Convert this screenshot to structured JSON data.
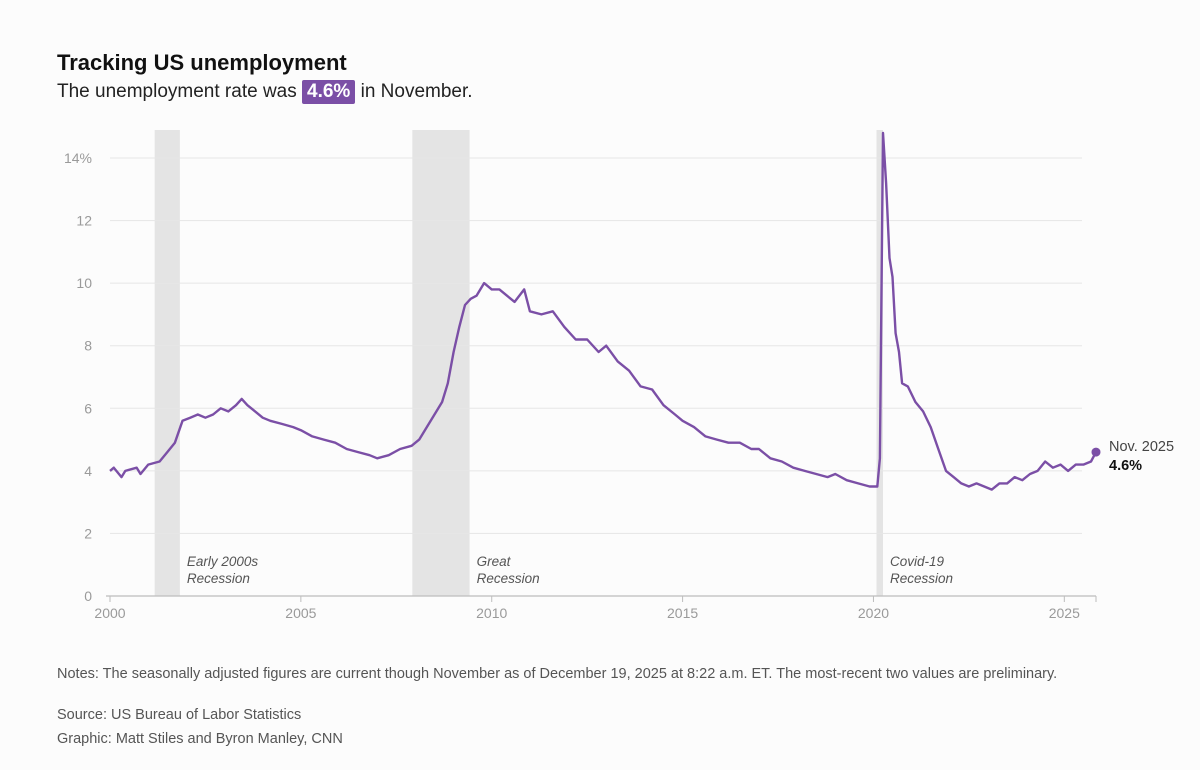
{
  "header": {
    "title": "Tracking US unemployment",
    "subtitle_pre": "The unemployment rate was",
    "subtitle_value": "4.6%",
    "subtitle_post": "in November."
  },
  "footer": {
    "notes": "Notes: The seasonally adjusted figures are current though November as of December 19, 2025 at 8:22 a.m. ET. The most-recent two values are preliminary.",
    "source": "Source: US Bureau of Labor Statistics",
    "credit": "Graphic: Matt Stiles and Byron Manley, CNN"
  },
  "colors": {
    "line": "#7b4fa6",
    "recession": "#e4e4e4",
    "grid": "#e6e6e6",
    "axis_text": "#9a9a9a",
    "badge": "#7b4fa6"
  },
  "chart_data": {
    "type": "line",
    "title": "Tracking US unemployment",
    "subtitle": "The unemployment rate was 4.6% in November.",
    "xlim": [
      2000,
      2025.83
    ],
    "ylim": [
      0,
      15
    ],
    "x_ticks": [
      2000,
      2005,
      2010,
      2015,
      2020,
      2025
    ],
    "y_ticks": [
      {
        "value": 0,
        "label": "0"
      },
      {
        "value": 2,
        "label": "2"
      },
      {
        "value": 4,
        "label": "4"
      },
      {
        "value": 6,
        "label": "6"
      },
      {
        "value": 8,
        "label": "8"
      },
      {
        "value": 10,
        "label": "10"
      },
      {
        "value": 12,
        "label": "12"
      },
      {
        "value": 14,
        "label": "14%"
      }
    ],
    "grid": true,
    "recessions": [
      {
        "start": 2001.17,
        "end": 2001.83,
        "label_line1": "Early 2000s",
        "label_line2": "Recession"
      },
      {
        "start": 2007.92,
        "end": 2009.42,
        "label_line1": "Great",
        "label_line2": "Recession"
      },
      {
        "start": 2020.08,
        "end": 2020.25,
        "label_line1": "Covid-19",
        "label_line2": "Recession"
      }
    ],
    "end_label": {
      "x": 2025.83,
      "y": 4.6,
      "name": "Nov. 2025",
      "value": "4.6%"
    },
    "series": [
      {
        "values": [
          [
            2000.0,
            4.0
          ],
          [
            2000.1,
            4.1
          ],
          [
            2000.3,
            3.8
          ],
          [
            2000.4,
            4.0
          ],
          [
            2000.7,
            4.1
          ],
          [
            2000.8,
            3.9
          ],
          [
            2001.0,
            4.2
          ],
          [
            2001.3,
            4.3
          ],
          [
            2001.5,
            4.6
          ],
          [
            2001.7,
            4.9
          ],
          [
            2001.9,
            5.6
          ],
          [
            2002.1,
            5.7
          ],
          [
            2002.3,
            5.8
          ],
          [
            2002.5,
            5.7
          ],
          [
            2002.7,
            5.8
          ],
          [
            2002.9,
            6.0
          ],
          [
            2003.1,
            5.9
          ],
          [
            2003.3,
            6.1
          ],
          [
            2003.45,
            6.3
          ],
          [
            2003.6,
            6.1
          ],
          [
            2003.8,
            5.9
          ],
          [
            2004.0,
            5.7
          ],
          [
            2004.2,
            5.6
          ],
          [
            2004.5,
            5.5
          ],
          [
            2004.8,
            5.4
          ],
          [
            2005.0,
            5.3
          ],
          [
            2005.3,
            5.1
          ],
          [
            2005.6,
            5.0
          ],
          [
            2005.9,
            4.9
          ],
          [
            2006.2,
            4.7
          ],
          [
            2006.5,
            4.6
          ],
          [
            2006.8,
            4.5
          ],
          [
            2007.0,
            4.4
          ],
          [
            2007.3,
            4.5
          ],
          [
            2007.6,
            4.7
          ],
          [
            2007.9,
            4.8
          ],
          [
            2008.1,
            5.0
          ],
          [
            2008.3,
            5.4
          ],
          [
            2008.5,
            5.8
          ],
          [
            2008.7,
            6.2
          ],
          [
            2008.85,
            6.8
          ],
          [
            2009.0,
            7.8
          ],
          [
            2009.15,
            8.6
          ],
          [
            2009.3,
            9.3
          ],
          [
            2009.45,
            9.5
          ],
          [
            2009.6,
            9.6
          ],
          [
            2009.8,
            10.0
          ],
          [
            2010.0,
            9.8
          ],
          [
            2010.2,
            9.8
          ],
          [
            2010.4,
            9.6
          ],
          [
            2010.6,
            9.4
          ],
          [
            2010.85,
            9.8
          ],
          [
            2011.0,
            9.1
          ],
          [
            2011.3,
            9.0
          ],
          [
            2011.6,
            9.1
          ],
          [
            2011.9,
            8.6
          ],
          [
            2012.2,
            8.2
          ],
          [
            2012.5,
            8.2
          ],
          [
            2012.8,
            7.8
          ],
          [
            2013.0,
            8.0
          ],
          [
            2013.3,
            7.5
          ],
          [
            2013.6,
            7.2
          ],
          [
            2013.9,
            6.7
          ],
          [
            2014.2,
            6.6
          ],
          [
            2014.5,
            6.1
          ],
          [
            2014.8,
            5.8
          ],
          [
            2015.0,
            5.6
          ],
          [
            2015.3,
            5.4
          ],
          [
            2015.6,
            5.1
          ],
          [
            2015.9,
            5.0
          ],
          [
            2016.2,
            4.9
          ],
          [
            2016.5,
            4.9
          ],
          [
            2016.8,
            4.7
          ],
          [
            2017.0,
            4.7
          ],
          [
            2017.3,
            4.4
          ],
          [
            2017.6,
            4.3
          ],
          [
            2017.9,
            4.1
          ],
          [
            2018.2,
            4.0
          ],
          [
            2018.5,
            3.9
          ],
          [
            2018.8,
            3.8
          ],
          [
            2019.0,
            3.9
          ],
          [
            2019.3,
            3.7
          ],
          [
            2019.6,
            3.6
          ],
          [
            2019.9,
            3.5
          ],
          [
            2020.1,
            3.5
          ],
          [
            2020.17,
            4.4
          ],
          [
            2020.25,
            14.8
          ],
          [
            2020.33,
            13.2
          ],
          [
            2020.42,
            10.8
          ],
          [
            2020.5,
            10.2
          ],
          [
            2020.58,
            8.4
          ],
          [
            2020.67,
            7.8
          ],
          [
            2020.75,
            6.8
          ],
          [
            2020.9,
            6.7
          ],
          [
            2021.1,
            6.2
          ],
          [
            2021.3,
            5.9
          ],
          [
            2021.5,
            5.4
          ],
          [
            2021.7,
            4.7
          ],
          [
            2021.9,
            4.0
          ],
          [
            2022.1,
            3.8
          ],
          [
            2022.3,
            3.6
          ],
          [
            2022.5,
            3.5
          ],
          [
            2022.7,
            3.6
          ],
          [
            2022.9,
            3.5
          ],
          [
            2023.1,
            3.4
          ],
          [
            2023.3,
            3.6
          ],
          [
            2023.5,
            3.6
          ],
          [
            2023.7,
            3.8
          ],
          [
            2023.9,
            3.7
          ],
          [
            2024.1,
            3.9
          ],
          [
            2024.3,
            4.0
          ],
          [
            2024.5,
            4.3
          ],
          [
            2024.7,
            4.1
          ],
          [
            2024.9,
            4.2
          ],
          [
            2025.1,
            4.0
          ],
          [
            2025.3,
            4.2
          ],
          [
            2025.5,
            4.2
          ],
          [
            2025.7,
            4.3
          ],
          [
            2025.83,
            4.6
          ]
        ]
      }
    ]
  }
}
